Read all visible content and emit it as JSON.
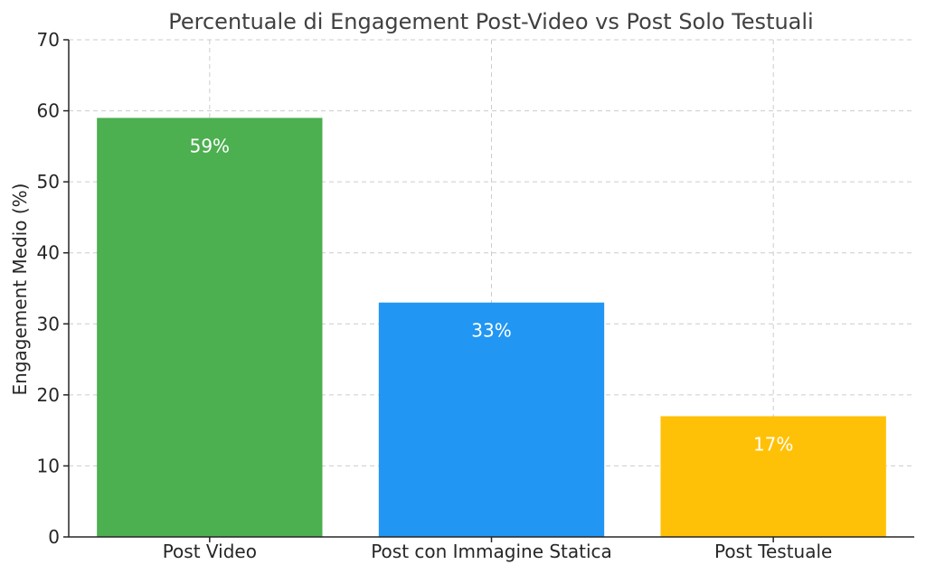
{
  "chart_data": {
    "type": "bar",
    "title": "Percentuale di Engagement Post-Video vs Post Solo Testuali",
    "xlabel": "",
    "ylabel": "Engagement Medio (%)",
    "categories": [
      "Post Video",
      "Post con Immagine Statica",
      "Post Testuale"
    ],
    "values": [
      59,
      33,
      17
    ],
    "data_labels": [
      "59%",
      "33%",
      "17%"
    ],
    "colors": [
      "#4CAF50",
      "#2196F3",
      "#FFC107"
    ],
    "ylim": [
      0,
      70
    ],
    "yticks": [
      0,
      10,
      20,
      30,
      40,
      50,
      60,
      70
    ],
    "grid": true,
    "legend": "none"
  }
}
